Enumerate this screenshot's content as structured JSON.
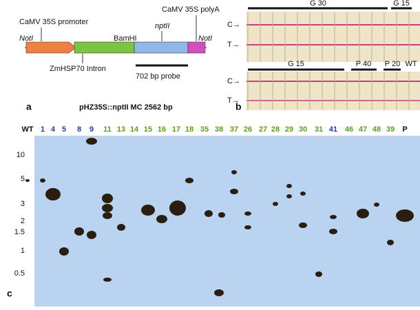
{
  "panel_a": {
    "promoter": "CaMV 35S promoter",
    "noti_left": "NotI",
    "bamhi": "BamHI",
    "nptii": "nptII",
    "polya": "CaMV 35S polyA",
    "noti_right": "NotI",
    "intron": "ZmHSP70 Intron",
    "probe": "702 bp probe",
    "letter": "a",
    "title": "pHZ35S::nptII MC 2562 bp"
  },
  "panel_b": {
    "top_labels": [
      "G 30",
      "G 15"
    ],
    "bottom_labels": [
      "G 15",
      "P 40",
      "P 20",
      "WT"
    ],
    "c_marker": "C→",
    "t_marker": "T→",
    "letter": "b"
  },
  "panel_c": {
    "letter": "c",
    "sizes": [
      "10",
      "5",
      "3",
      "2",
      "1.5",
      "1",
      "0.5"
    ],
    "lanes": [
      {
        "label": "WT",
        "color": "#111111"
      },
      {
        "label": "1",
        "color": "#1f3f9a"
      },
      {
        "label": "4",
        "color": "#1f3f9a"
      },
      {
        "label": "5",
        "color": "#1f3f9a"
      },
      {
        "label": "8",
        "color": "#1f3f9a"
      },
      {
        "label": "9",
        "color": "#1f3f9a"
      },
      {
        "label": "11",
        "color": "#5a9e1a"
      },
      {
        "label": "13",
        "color": "#5a9e1a"
      },
      {
        "label": "14",
        "color": "#5a9e1a"
      },
      {
        "label": "15",
        "color": "#5a9e1a"
      },
      {
        "label": "16",
        "color": "#5a9e1a"
      },
      {
        "label": "17",
        "color": "#5a9e1a"
      },
      {
        "label": "18",
        "color": "#5a9e1a"
      },
      {
        "label": "35",
        "color": "#5a9e1a"
      },
      {
        "label": "38",
        "color": "#5a9e1a"
      },
      {
        "label": "37",
        "color": "#5a9e1a"
      },
      {
        "label": "26",
        "color": "#5a9e1a"
      },
      {
        "label": "27",
        "color": "#5a9e1a"
      },
      {
        "label": "28",
        "color": "#5a9e1a"
      },
      {
        "label": "29",
        "color": "#5a9e1a"
      },
      {
        "label": "30",
        "color": "#5a9e1a"
      },
      {
        "label": "31",
        "color": "#5a9e1a"
      },
      {
        "label": "41",
        "color": "#1f3f9a"
      },
      {
        "label": "46",
        "color": "#5a9e1a"
      },
      {
        "label": "47",
        "color": "#5a9e1a"
      },
      {
        "label": "48",
        "color": "#5a9e1a"
      },
      {
        "label": "39",
        "color": "#5a9e1a"
      },
      {
        "label": "P",
        "color": "#111111"
      }
    ]
  }
}
